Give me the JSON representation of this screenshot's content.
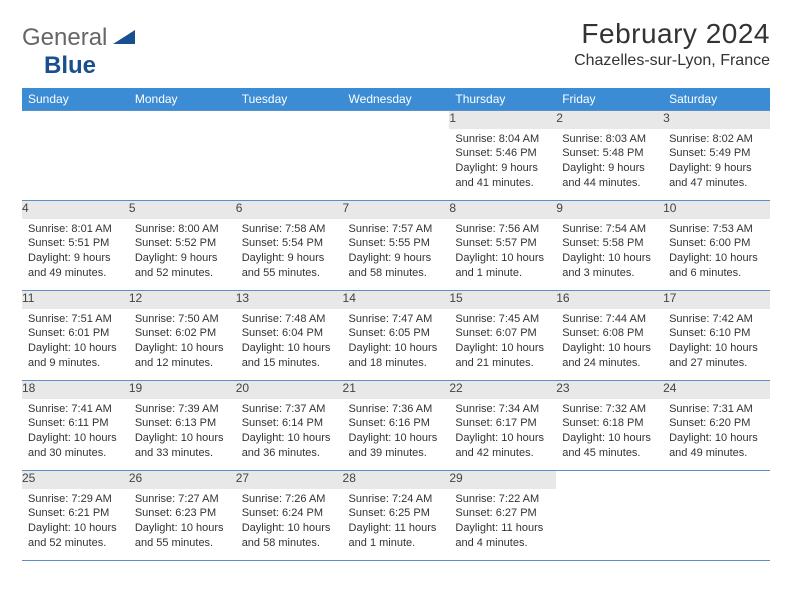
{
  "brand": {
    "part1": "General",
    "part2": "Blue"
  },
  "title": "February 2024",
  "location": "Chazelles-sur-Lyon, France",
  "weekdays": [
    "Sunday",
    "Monday",
    "Tuesday",
    "Wednesday",
    "Thursday",
    "Friday",
    "Saturday"
  ],
  "colors": {
    "header_bg": "#3b8cd4",
    "header_text": "#ffffff",
    "daynum_bg": "#e8e8e8",
    "rule": "#5b8fc7",
    "text": "#333333",
    "logo_gray": "#666666",
    "logo_blue": "#1a4f8f"
  },
  "layout": {
    "columns": 7,
    "rows": 5,
    "first_weekday_index": 4,
    "font_size_body": 11,
    "font_size_daynum": 12,
    "font_size_title": 28,
    "font_size_location": 16
  },
  "days": [
    {
      "n": 1,
      "sunrise": "8:04 AM",
      "sunset": "5:46 PM",
      "daylight": "9 hours and 41 minutes."
    },
    {
      "n": 2,
      "sunrise": "8:03 AM",
      "sunset": "5:48 PM",
      "daylight": "9 hours and 44 minutes."
    },
    {
      "n": 3,
      "sunrise": "8:02 AM",
      "sunset": "5:49 PM",
      "daylight": "9 hours and 47 minutes."
    },
    {
      "n": 4,
      "sunrise": "8:01 AM",
      "sunset": "5:51 PM",
      "daylight": "9 hours and 49 minutes."
    },
    {
      "n": 5,
      "sunrise": "8:00 AM",
      "sunset": "5:52 PM",
      "daylight": "9 hours and 52 minutes."
    },
    {
      "n": 6,
      "sunrise": "7:58 AM",
      "sunset": "5:54 PM",
      "daylight": "9 hours and 55 minutes."
    },
    {
      "n": 7,
      "sunrise": "7:57 AM",
      "sunset": "5:55 PM",
      "daylight": "9 hours and 58 minutes."
    },
    {
      "n": 8,
      "sunrise": "7:56 AM",
      "sunset": "5:57 PM",
      "daylight": "10 hours and 1 minute."
    },
    {
      "n": 9,
      "sunrise": "7:54 AM",
      "sunset": "5:58 PM",
      "daylight": "10 hours and 3 minutes."
    },
    {
      "n": 10,
      "sunrise": "7:53 AM",
      "sunset": "6:00 PM",
      "daylight": "10 hours and 6 minutes."
    },
    {
      "n": 11,
      "sunrise": "7:51 AM",
      "sunset": "6:01 PM",
      "daylight": "10 hours and 9 minutes."
    },
    {
      "n": 12,
      "sunrise": "7:50 AM",
      "sunset": "6:02 PM",
      "daylight": "10 hours and 12 minutes."
    },
    {
      "n": 13,
      "sunrise": "7:48 AM",
      "sunset": "6:04 PM",
      "daylight": "10 hours and 15 minutes."
    },
    {
      "n": 14,
      "sunrise": "7:47 AM",
      "sunset": "6:05 PM",
      "daylight": "10 hours and 18 minutes."
    },
    {
      "n": 15,
      "sunrise": "7:45 AM",
      "sunset": "6:07 PM",
      "daylight": "10 hours and 21 minutes."
    },
    {
      "n": 16,
      "sunrise": "7:44 AM",
      "sunset": "6:08 PM",
      "daylight": "10 hours and 24 minutes."
    },
    {
      "n": 17,
      "sunrise": "7:42 AM",
      "sunset": "6:10 PM",
      "daylight": "10 hours and 27 minutes."
    },
    {
      "n": 18,
      "sunrise": "7:41 AM",
      "sunset": "6:11 PM",
      "daylight": "10 hours and 30 minutes."
    },
    {
      "n": 19,
      "sunrise": "7:39 AM",
      "sunset": "6:13 PM",
      "daylight": "10 hours and 33 minutes."
    },
    {
      "n": 20,
      "sunrise": "7:37 AM",
      "sunset": "6:14 PM",
      "daylight": "10 hours and 36 minutes."
    },
    {
      "n": 21,
      "sunrise": "7:36 AM",
      "sunset": "6:16 PM",
      "daylight": "10 hours and 39 minutes."
    },
    {
      "n": 22,
      "sunrise": "7:34 AM",
      "sunset": "6:17 PM",
      "daylight": "10 hours and 42 minutes."
    },
    {
      "n": 23,
      "sunrise": "7:32 AM",
      "sunset": "6:18 PM",
      "daylight": "10 hours and 45 minutes."
    },
    {
      "n": 24,
      "sunrise": "7:31 AM",
      "sunset": "6:20 PM",
      "daylight": "10 hours and 49 minutes."
    },
    {
      "n": 25,
      "sunrise": "7:29 AM",
      "sunset": "6:21 PM",
      "daylight": "10 hours and 52 minutes."
    },
    {
      "n": 26,
      "sunrise": "7:27 AM",
      "sunset": "6:23 PM",
      "daylight": "10 hours and 55 minutes."
    },
    {
      "n": 27,
      "sunrise": "7:26 AM",
      "sunset": "6:24 PM",
      "daylight": "10 hours and 58 minutes."
    },
    {
      "n": 28,
      "sunrise": "7:24 AM",
      "sunset": "6:25 PM",
      "daylight": "11 hours and 1 minute."
    },
    {
      "n": 29,
      "sunrise": "7:22 AM",
      "sunset": "6:27 PM",
      "daylight": "11 hours and 4 minutes."
    }
  ],
  "labels": {
    "sunrise": "Sunrise:",
    "sunset": "Sunset:",
    "daylight": "Daylight:"
  }
}
